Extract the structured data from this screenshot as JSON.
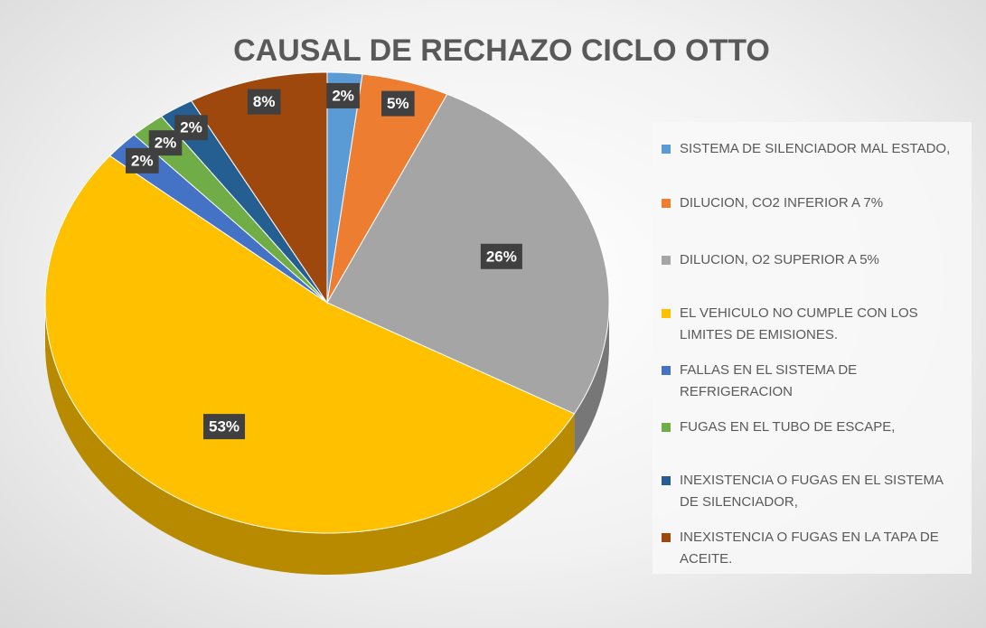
{
  "chart_data": {
    "type": "pie",
    "title": "CAUSAL DE RECHAZO CICLO OTTO",
    "categories": [
      "SISTEMA DE SILENCIADOR MAL ESTADO,",
      "DILUCION, CO2 INFERIOR A 7%",
      "DILUCION, O2 SUPERIOR A 5%",
      "EL VEHICULO NO CUMPLE CON LOS LIMITES DE EMISIONES.",
      "FALLAS EN EL SISTEMA DE REFRIGERACION",
      "FUGAS EN EL TUBO DE ESCAPE,",
      "INEXISTENCIA O FUGAS EN EL SISTEMA DE SILENCIADOR,",
      "INEXISTENCIA O FUGAS EN LA TAPA DE ACEITE."
    ],
    "values": [
      2,
      5,
      26,
      53,
      2,
      2,
      2,
      8
    ],
    "value_labels": [
      "2%",
      "5%",
      "26%",
      "53%",
      "2%",
      "2%",
      "2%",
      "8%"
    ],
    "colors": [
      "#5b9bd5",
      "#ed7d31",
      "#a5a5a5",
      "#ffc000",
      "#4472c4",
      "#70ad47",
      "#255e91",
      "#9e480e"
    ],
    "legend": "right"
  }
}
